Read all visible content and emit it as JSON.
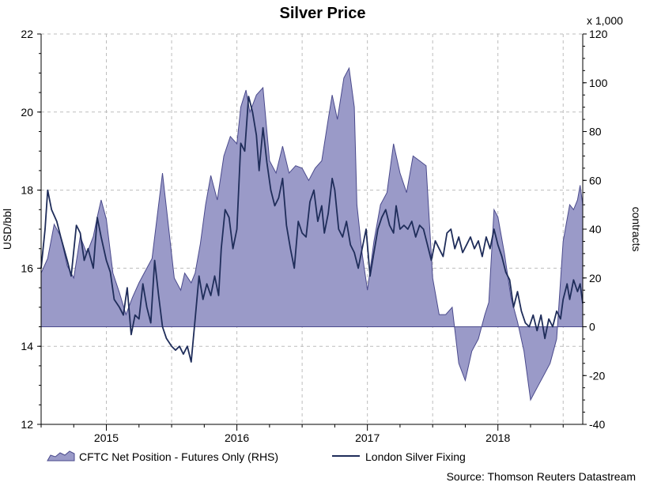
{
  "chart_data": {
    "type": "area+line",
    "title": "Silver Price",
    "multiplier_label": "x 1,000",
    "ylabel_left": "USD/bbl",
    "ylabel_right": "contracts",
    "source": "Source: Thomson Reuters Datastream",
    "y_left": {
      "min": 12,
      "max": 22,
      "ticks": [
        "22",
        "20",
        "18",
        "16",
        "14",
        "12"
      ]
    },
    "y_right": {
      "min": -40,
      "max": 120,
      "ticks": [
        "120",
        "100",
        "80",
        "60",
        "40",
        "20",
        "0",
        "-20",
        "-40"
      ]
    },
    "x": {
      "min": 2014.5,
      "max": 2018.65,
      "ticks": [
        "2015",
        "2016",
        "2017",
        "2018"
      ]
    },
    "grid": true,
    "legend_position": "bottom-left",
    "colors": {
      "area_fill": "#9a9ac8",
      "area_stroke": "#4a4a8c",
      "line": "#1f2d5a",
      "grid": "#bdbdbd"
    },
    "series": [
      {
        "name": "CFTC Net Position - Futures Only (RHS)",
        "axis": "right",
        "kind": "area",
        "points": [
          [
            2014.5,
            22
          ],
          [
            2014.55,
            28
          ],
          [
            2014.6,
            42
          ],
          [
            2014.65,
            37
          ],
          [
            2014.7,
            25
          ],
          [
            2014.75,
            20
          ],
          [
            2014.8,
            37
          ],
          [
            2014.85,
            30
          ],
          [
            2014.9,
            37
          ],
          [
            2014.93,
            45
          ],
          [
            2014.96,
            52
          ],
          [
            2015.0,
            44
          ],
          [
            2015.05,
            22
          ],
          [
            2015.1,
            14
          ],
          [
            2015.15,
            5
          ],
          [
            2015.2,
            12
          ],
          [
            2015.25,
            18
          ],
          [
            2015.3,
            23
          ],
          [
            2015.35,
            28
          ],
          [
            2015.4,
            50
          ],
          [
            2015.43,
            63
          ],
          [
            2015.47,
            44
          ],
          [
            2015.52,
            20
          ],
          [
            2015.57,
            15
          ],
          [
            2015.6,
            22
          ],
          [
            2015.65,
            18
          ],
          [
            2015.68,
            22
          ],
          [
            2015.72,
            34
          ],
          [
            2015.76,
            50
          ],
          [
            2015.8,
            62
          ],
          [
            2015.85,
            52
          ],
          [
            2015.9,
            70
          ],
          [
            2015.95,
            78
          ],
          [
            2016.0,
            75
          ],
          [
            2016.03,
            90
          ],
          [
            2016.07,
            97
          ],
          [
            2016.1,
            88
          ],
          [
            2016.15,
            95
          ],
          [
            2016.2,
            98
          ],
          [
            2016.25,
            68
          ],
          [
            2016.3,
            63
          ],
          [
            2016.35,
            74
          ],
          [
            2016.4,
            63
          ],
          [
            2016.45,
            66
          ],
          [
            2016.5,
            65
          ],
          [
            2016.55,
            60
          ],
          [
            2016.6,
            65
          ],
          [
            2016.65,
            68
          ],
          [
            2016.7,
            85
          ],
          [
            2016.73,
            95
          ],
          [
            2016.77,
            85
          ],
          [
            2016.82,
            102
          ],
          [
            2016.86,
            106
          ],
          [
            2016.9,
            90
          ],
          [
            2016.92,
            50
          ],
          [
            2016.96,
            30
          ],
          [
            2017.0,
            15
          ],
          [
            2017.05,
            35
          ],
          [
            2017.1,
            50
          ],
          [
            2017.15,
            55
          ],
          [
            2017.2,
            75
          ],
          [
            2017.25,
            63
          ],
          [
            2017.3,
            55
          ],
          [
            2017.35,
            70
          ],
          [
            2017.4,
            68
          ],
          [
            2017.45,
            66
          ],
          [
            2017.5,
            20
          ],
          [
            2017.55,
            5
          ],
          [
            2017.6,
            5
          ],
          [
            2017.65,
            8
          ],
          [
            2017.7,
            -15
          ],
          [
            2017.75,
            -22
          ],
          [
            2017.8,
            -10
          ],
          [
            2017.85,
            -5
          ],
          [
            2017.9,
            5
          ],
          [
            2017.93,
            10
          ],
          [
            2017.97,
            48
          ],
          [
            2018.0,
            45
          ],
          [
            2018.05,
            30
          ],
          [
            2018.1,
            12
          ],
          [
            2018.15,
            2
          ],
          [
            2018.2,
            -10
          ],
          [
            2018.25,
            -30
          ],
          [
            2018.3,
            -25
          ],
          [
            2018.35,
            -20
          ],
          [
            2018.4,
            -15
          ],
          [
            2018.45,
            -5
          ],
          [
            2018.5,
            35
          ],
          [
            2018.55,
            50
          ],
          [
            2018.58,
            48
          ],
          [
            2018.61,
            52
          ],
          [
            2018.63,
            58
          ],
          [
            2018.65,
            50
          ]
        ]
      },
      {
        "name": "London Silver Fixing",
        "axis": "left",
        "kind": "line",
        "points": [
          [
            2014.5,
            16.0
          ],
          [
            2014.53,
            17.0
          ],
          [
            2014.55,
            18.0
          ],
          [
            2014.58,
            17.5
          ],
          [
            2014.62,
            17.2
          ],
          [
            2014.65,
            16.8
          ],
          [
            2014.7,
            16.2
          ],
          [
            2014.73,
            15.8
          ],
          [
            2014.77,
            17.1
          ],
          [
            2014.8,
            16.9
          ],
          [
            2014.83,
            16.2
          ],
          [
            2014.86,
            16.5
          ],
          [
            2014.9,
            16.0
          ],
          [
            2014.93,
            17.3
          ],
          [
            2014.96,
            16.8
          ],
          [
            2015.0,
            16.2
          ],
          [
            2015.03,
            15.9
          ],
          [
            2015.06,
            15.2
          ],
          [
            2015.1,
            15.0
          ],
          [
            2015.13,
            14.8
          ],
          [
            2015.16,
            15.5
          ],
          [
            2015.19,
            14.3
          ],
          [
            2015.22,
            14.8
          ],
          [
            2015.25,
            14.7
          ],
          [
            2015.28,
            15.6
          ],
          [
            2015.31,
            15.0
          ],
          [
            2015.34,
            14.6
          ],
          [
            2015.37,
            16.2
          ],
          [
            2015.4,
            15.3
          ],
          [
            2015.43,
            14.5
          ],
          [
            2015.46,
            14.2
          ],
          [
            2015.5,
            14.0
          ],
          [
            2015.53,
            13.9
          ],
          [
            2015.56,
            14.0
          ],
          [
            2015.59,
            13.8
          ],
          [
            2015.62,
            14.0
          ],
          [
            2015.65,
            13.6
          ],
          [
            2015.68,
            14.7
          ],
          [
            2015.71,
            15.8
          ],
          [
            2015.74,
            15.2
          ],
          [
            2015.77,
            15.6
          ],
          [
            2015.8,
            15.3
          ],
          [
            2015.83,
            15.8
          ],
          [
            2015.86,
            15.3
          ],
          [
            2015.88,
            16.5
          ],
          [
            2015.91,
            17.5
          ],
          [
            2015.94,
            17.3
          ],
          [
            2015.97,
            16.5
          ],
          [
            2016.0,
            17.0
          ],
          [
            2016.03,
            19.2
          ],
          [
            2016.06,
            19.0
          ],
          [
            2016.09,
            20.4
          ],
          [
            2016.12,
            20.0
          ],
          [
            2016.15,
            19.4
          ],
          [
            2016.17,
            18.5
          ],
          [
            2016.2,
            19.6
          ],
          [
            2016.23,
            18.7
          ],
          [
            2016.26,
            18.0
          ],
          [
            2016.29,
            17.6
          ],
          [
            2016.32,
            17.8
          ],
          [
            2016.35,
            18.3
          ],
          [
            2016.38,
            17.1
          ],
          [
            2016.41,
            16.5
          ],
          [
            2016.44,
            16.0
          ],
          [
            2016.47,
            17.2
          ],
          [
            2016.5,
            16.9
          ],
          [
            2016.53,
            16.8
          ],
          [
            2016.56,
            17.7
          ],
          [
            2016.59,
            18.0
          ],
          [
            2016.62,
            17.2
          ],
          [
            2016.65,
            17.6
          ],
          [
            2016.67,
            16.9
          ],
          [
            2016.7,
            17.4
          ],
          [
            2016.73,
            18.3
          ],
          [
            2016.75,
            18.0
          ],
          [
            2016.78,
            17.0
          ],
          [
            2016.81,
            16.8
          ],
          [
            2016.84,
            17.2
          ],
          [
            2016.87,
            16.6
          ],
          [
            2016.9,
            16.4
          ],
          [
            2016.93,
            16.0
          ],
          [
            2016.96,
            16.5
          ],
          [
            2016.99,
            17.0
          ],
          [
            2017.02,
            15.8
          ],
          [
            2017.05,
            16.4
          ],
          [
            2017.08,
            17.0
          ],
          [
            2017.11,
            17.3
          ],
          [
            2017.14,
            17.5
          ],
          [
            2017.17,
            17.1
          ],
          [
            2017.2,
            16.9
          ],
          [
            2017.22,
            17.6
          ],
          [
            2017.25,
            17.0
          ],
          [
            2017.28,
            17.1
          ],
          [
            2017.31,
            17.0
          ],
          [
            2017.34,
            17.2
          ],
          [
            2017.37,
            16.8
          ],
          [
            2017.4,
            17.1
          ],
          [
            2017.43,
            17.0
          ],
          [
            2017.46,
            16.6
          ],
          [
            2017.49,
            16.2
          ],
          [
            2017.52,
            16.7
          ],
          [
            2017.55,
            16.5
          ],
          [
            2017.58,
            16.3
          ],
          [
            2017.61,
            16.9
          ],
          [
            2017.64,
            17.0
          ],
          [
            2017.67,
            16.5
          ],
          [
            2017.7,
            16.8
          ],
          [
            2017.73,
            16.4
          ],
          [
            2017.76,
            16.6
          ],
          [
            2017.79,
            16.8
          ],
          [
            2017.82,
            16.5
          ],
          [
            2017.85,
            16.7
          ],
          [
            2017.88,
            16.3
          ],
          [
            2017.91,
            16.8
          ],
          [
            2017.94,
            16.5
          ],
          [
            2017.97,
            17.0
          ],
          [
            2018.0,
            16.6
          ],
          [
            2018.03,
            16.3
          ],
          [
            2018.06,
            15.9
          ],
          [
            2018.09,
            15.7
          ],
          [
            2018.12,
            15.0
          ],
          [
            2018.15,
            15.4
          ],
          [
            2018.18,
            14.9
          ],
          [
            2018.21,
            14.6
          ],
          [
            2018.24,
            14.5
          ],
          [
            2018.27,
            14.8
          ],
          [
            2018.3,
            14.4
          ],
          [
            2018.33,
            14.8
          ],
          [
            2018.36,
            14.2
          ],
          [
            2018.39,
            14.7
          ],
          [
            2018.42,
            14.5
          ],
          [
            2018.45,
            14.9
          ],
          [
            2018.48,
            14.7
          ],
          [
            2018.5,
            15.2
          ],
          [
            2018.53,
            15.6
          ],
          [
            2018.55,
            15.2
          ],
          [
            2018.58,
            15.7
          ],
          [
            2018.61,
            15.4
          ],
          [
            2018.63,
            15.6
          ],
          [
            2018.65,
            15.1
          ]
        ]
      }
    ]
  }
}
